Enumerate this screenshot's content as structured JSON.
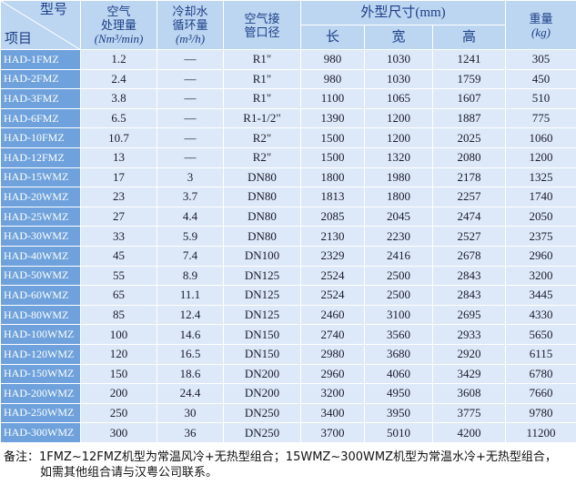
{
  "header": {
    "model_top": "型号",
    "model_bottom": "项目",
    "air_flow": [
      "空气",
      "处理量",
      "(Nm³/min)"
    ],
    "cooling_water": [
      "冷却水",
      "循环量",
      "(m³/h)"
    ],
    "pipe": [
      "空气接",
      "管口径"
    ],
    "dimensions": "外型尺寸(mm)",
    "length": "长",
    "width": "宽",
    "height": "高",
    "weight": [
      "重量",
      "(kg)"
    ]
  },
  "table": {
    "rows": [
      [
        "HAD-1FMZ",
        "1.2",
        "—",
        "R1\"",
        "980",
        "1030",
        "1241",
        "305"
      ],
      [
        "HAD-2FMZ",
        "2.4",
        "—",
        "R1\"",
        "980",
        "1030",
        "1759",
        "450"
      ],
      [
        "HAD-3FMZ",
        "3.8",
        "—",
        "R1\"",
        "1100",
        "1065",
        "1607",
        "510"
      ],
      [
        "HAD-6FMZ",
        "6.5",
        "—",
        "R1-1/2\"",
        "1390",
        "1200",
        "1887",
        "775"
      ],
      [
        "HAD-10FMZ",
        "10.7",
        "—",
        "R2\"",
        "1500",
        "1200",
        "2025",
        "1060"
      ],
      [
        "HAD-12FMZ",
        "13",
        "—",
        "R2\"",
        "1500",
        "1320",
        "2080",
        "1200"
      ],
      [
        "HAD-15WMZ",
        "17",
        "3",
        "DN80",
        "1800",
        "1980",
        "2178",
        "1325"
      ],
      [
        "HAD-20WMZ",
        "23",
        "3.7",
        "DN80",
        "1813",
        "1800",
        "2257",
        "1740"
      ],
      [
        "HAD-25WMZ",
        "27",
        "4.4",
        "DN80",
        "2085",
        "2045",
        "2474",
        "2050"
      ],
      [
        "HAD-30WMZ",
        "33",
        "5.9",
        "DN80",
        "2130",
        "2230",
        "2527",
        "2375"
      ],
      [
        "HAD-40WMZ",
        "45",
        "7.4",
        "DN100",
        "2329",
        "2416",
        "2678",
        "2960"
      ],
      [
        "HAD-50WMZ",
        "55",
        "8.9",
        "DN125",
        "2524",
        "2500",
        "2843",
        "3200"
      ],
      [
        "HAD-60WMZ",
        "65",
        "11.1",
        "DN125",
        "2524",
        "2500",
        "2843",
        "3445"
      ],
      [
        "HAD-80WMZ",
        "85",
        "12.4",
        "DN125",
        "2460",
        "3100",
        "2695",
        "4330"
      ],
      [
        "HAD-100WMZ",
        "100",
        "14.6",
        "DN150",
        "2740",
        "3560",
        "2933",
        "5650"
      ],
      [
        "HAD-120WMZ",
        "120",
        "16.5",
        "DN150",
        "2980",
        "3680",
        "2920",
        "6115"
      ],
      [
        "HAD-150WMZ",
        "150",
        "18.6",
        "DN200",
        "2960",
        "4060",
        "3429",
        "6780"
      ],
      [
        "HAD-200WMZ",
        "200",
        "24.4",
        "DN200",
        "3200",
        "4950",
        "3608",
        "7660"
      ],
      [
        "HAD-250WMZ",
        "250",
        "30",
        "DN250",
        "3400",
        "3950",
        "3775",
        "9780"
      ],
      [
        "HAD-300WMZ",
        "300",
        "36",
        "DN250",
        "3700",
        "5010",
        "4200",
        "11200"
      ]
    ]
  },
  "note": [
    "备注：1FMZ~12FMZ机型为常温风冷+无热型组合；15WMZ~300WMZ机型为常温水冷+无热型组合，",
    "如需其他组合请与汉粤公司联系。"
  ]
}
